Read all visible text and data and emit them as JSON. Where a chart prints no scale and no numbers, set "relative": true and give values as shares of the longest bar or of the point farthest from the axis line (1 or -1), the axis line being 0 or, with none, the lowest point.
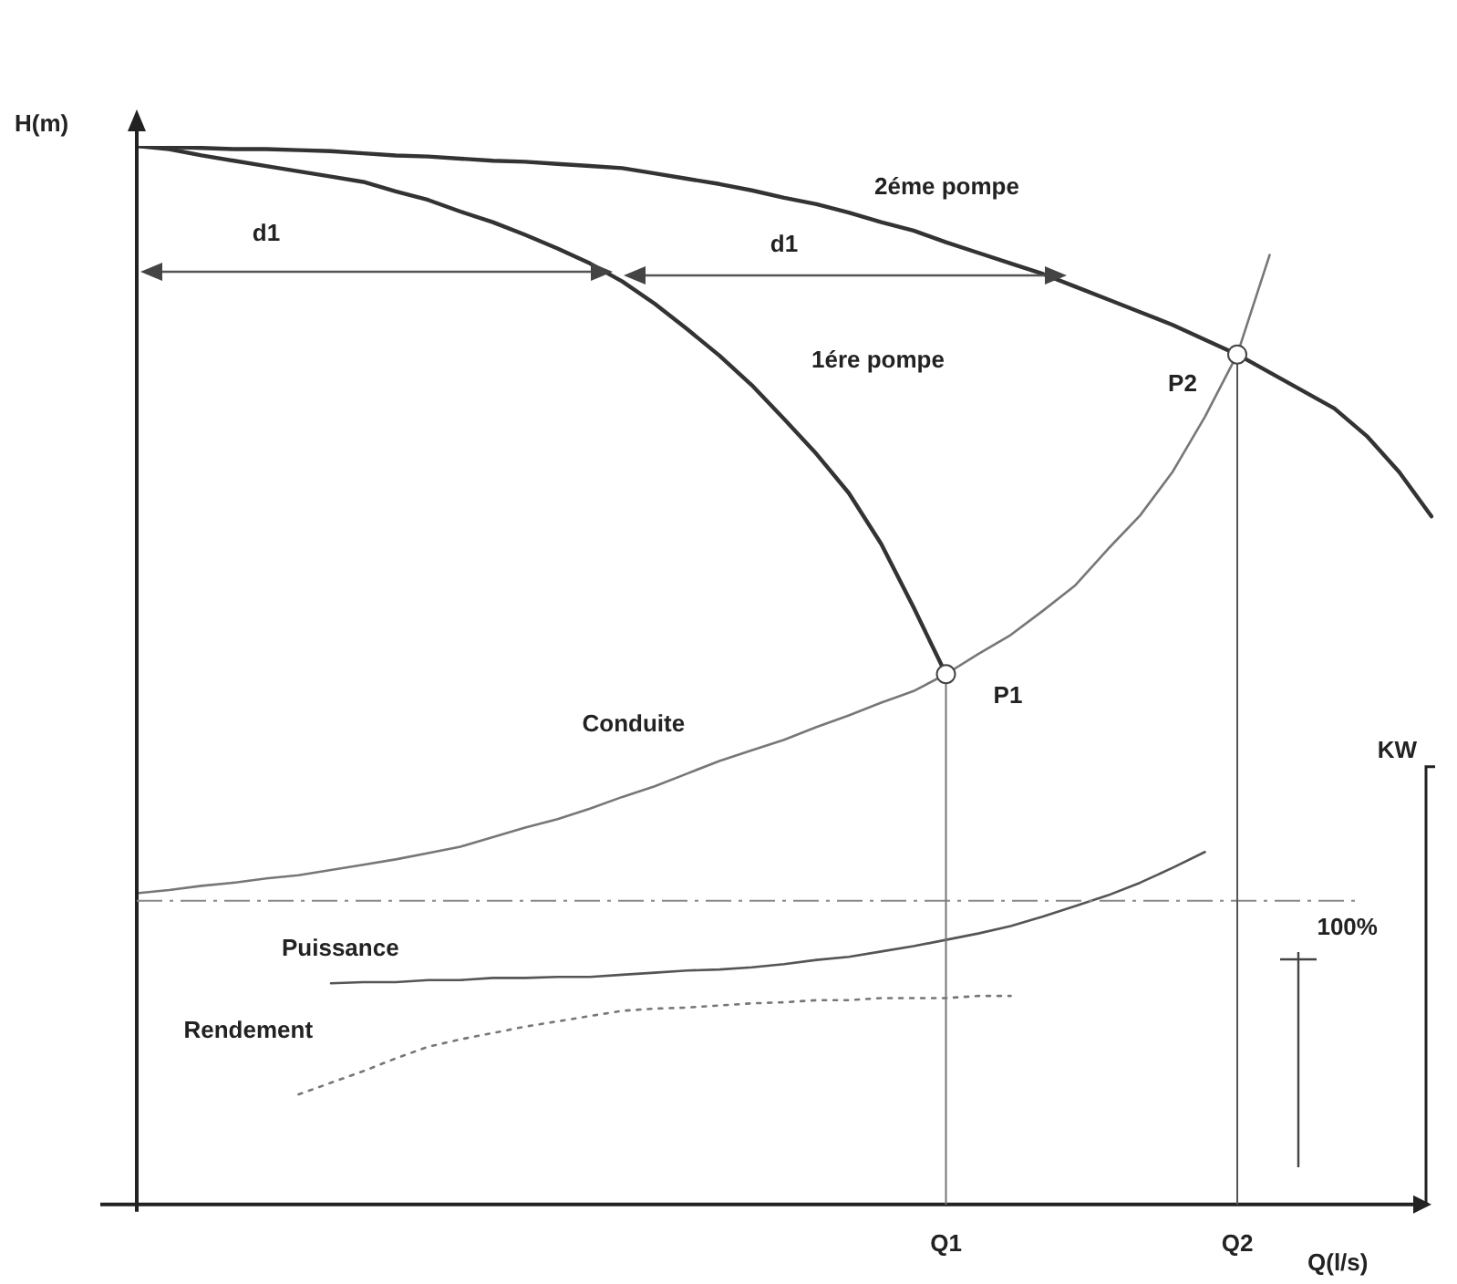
{
  "chart_data": {
    "type": "line",
    "relative": true,
    "xlabel": "Q(l/s)",
    "ylabel": "H(m)",
    "y2label": "KW",
    "legend": false,
    "marker": "none",
    "categories": [
      null,
      null,
      null,
      null,
      null,
      null,
      null,
      null,
      null,
      null,
      null,
      null,
      null,
      null,
      null,
      null,
      null,
      null,
      null,
      null,
      null,
      null,
      null,
      null,
      null,
      "Q1",
      null,
      null,
      null,
      null,
      null,
      null,
      null,
      null,
      "Q2",
      null,
      null,
      null,
      null,
      null,
      null
    ],
    "series": [
      {
        "name": "2éme pompe",
        "color": "#333333",
        "values": [
          1.0,
          0.999,
          0.998,
          0.997,
          0.997,
          0.996,
          0.995,
          0.993,
          0.991,
          0.99,
          0.988,
          0.986,
          0.985,
          0.983,
          0.981,
          0.979,
          0.974,
          0.969,
          0.964,
          0.958,
          0.951,
          0.945,
          0.937,
          0.928,
          0.92,
          0.909,
          0.899,
          0.889,
          0.879,
          0.867,
          0.855,
          0.843,
          0.831,
          0.817,
          0.803,
          0.786,
          0.769,
          0.752,
          0.726,
          0.692,
          0.65
        ]
      },
      {
        "name": "1ére pompe",
        "color": "#333333",
        "values": [
          1.0,
          0.997,
          0.991,
          0.986,
          0.981,
          0.976,
          0.971,
          0.966,
          0.957,
          0.949,
          0.938,
          0.928,
          0.916,
          0.903,
          0.889,
          0.872,
          0.851,
          0.827,
          0.802,
          0.774,
          0.742,
          0.709,
          0.672,
          0.624,
          0.564,
          0.501,
          null,
          null,
          null,
          null,
          null,
          null,
          null,
          null,
          null,
          null,
          null,
          null,
          null,
          null,
          null
        ]
      },
      {
        "name": "Conduite",
        "color": "#777777",
        "values": [
          0.294,
          0.297,
          0.301,
          0.304,
          0.308,
          0.311,
          0.316,
          0.321,
          0.326,
          0.332,
          0.338,
          0.347,
          0.356,
          0.364,
          0.374,
          0.385,
          0.395,
          0.407,
          0.419,
          0.429,
          0.439,
          0.451,
          0.462,
          0.474,
          0.485,
          0.501,
          0.52,
          0.538,
          0.561,
          0.585,
          0.619,
          0.651,
          0.692,
          0.744,
          0.803,
          0.897,
          null,
          null,
          null,
          null,
          null
        ]
      },
      {
        "name": "Puissance",
        "color": "#555555",
        "values": [
          null,
          null,
          null,
          null,
          null,
          null,
          0.209,
          0.21,
          0.21,
          0.212,
          0.212,
          0.214,
          0.214,
          0.215,
          0.215,
          0.217,
          0.219,
          0.221,
          0.222,
          0.224,
          0.227,
          0.231,
          0.234,
          0.239,
          0.244,
          0.25,
          0.256,
          0.263,
          0.272,
          0.282,
          0.292,
          0.304,
          0.318,
          0.333,
          null,
          null,
          null,
          null,
          null,
          null,
          null
        ]
      },
      {
        "name": "Rendement",
        "color": "#777777",
        "line_style": "dotted",
        "values": [
          null,
          null,
          null,
          null,
          null,
          0.104,
          0.115,
          0.126,
          0.138,
          0.149,
          0.156,
          0.162,
          0.168,
          0.173,
          0.178,
          0.183,
          0.185,
          0.186,
          0.188,
          0.19,
          0.191,
          0.193,
          0.193,
          0.195,
          0.195,
          0.195,
          0.197,
          0.197,
          null,
          null,
          null,
          null,
          null,
          null,
          null,
          null,
          null,
          null,
          null,
          null,
          null
        ]
      }
    ],
    "ref_lines": [
      {
        "axis": "y",
        "value": 0.287,
        "line_style": "dashed",
        "color": "#888888"
      },
      {
        "axis": "x",
        "value": "Q1",
        "color": "#777777"
      },
      {
        "axis": "x",
        "value": "Q2",
        "color": "#555555"
      }
    ],
    "annotations": [
      {
        "text": "P1",
        "x": "Q1",
        "y": 0.501
      },
      {
        "text": "P2",
        "x": "Q2",
        "y": 0.803
      },
      "d1",
      "d1",
      "100%"
    ]
  }
}
